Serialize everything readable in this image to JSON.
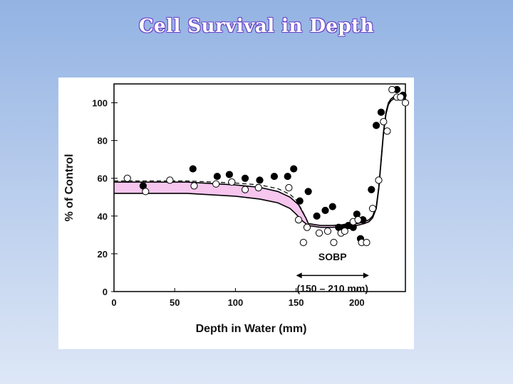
{
  "slide": {
    "title": "Cell Survival in Depth"
  },
  "chart_data": {
    "type": "scatter",
    "title": "",
    "xlabel": "Depth in Water (mm)",
    "ylabel": "% of Control",
    "xlim": [
      0,
      240
    ],
    "ylim": [
      0,
      110
    ],
    "xticks": [
      0,
      50,
      100,
      150,
      200
    ],
    "yticks": [
      0,
      20,
      40,
      60,
      80,
      100
    ],
    "grid": false,
    "legend": "none",
    "colors": {
      "filled": "#000000",
      "open": "#ffffff",
      "band": "#f6c6ee",
      "line": "#000000"
    },
    "series": [
      {
        "marker": "filled-circle",
        "x": [
          24,
          65,
          85,
          95,
          108,
          120,
          132,
          143,
          148,
          153,
          160,
          167,
          174,
          180,
          185,
          190,
          193,
          197,
          200,
          203,
          205,
          212,
          216,
          220,
          233,
          238
        ],
        "y": [
          56,
          65,
          61,
          62,
          60,
          59,
          61,
          61,
          65,
          48,
          53,
          40,
          43,
          45,
          34,
          34,
          35,
          34,
          41,
          28,
          38,
          54,
          88,
          95,
          107,
          104
        ]
      },
      {
        "marker": "open-circle",
        "x": [
          11,
          26,
          46,
          66,
          84,
          97,
          108,
          119,
          144,
          152,
          156,
          159,
          169,
          176,
          181,
          187,
          190,
          197,
          201,
          204,
          208,
          213,
          218,
          222,
          225,
          229,
          233,
          236,
          240
        ],
        "y": [
          60,
          53,
          59,
          56,
          57,
          58,
          54,
          55,
          55,
          38,
          26,
          34,
          31,
          32,
          26,
          31,
          32,
          37,
          38,
          26,
          26,
          44,
          59,
          90,
          85,
          107,
          103,
          103,
          100
        ]
      }
    ],
    "curves": {
      "upper": {
        "x": [
          0,
          60,
          100,
          120,
          135,
          145,
          152,
          158,
          160,
          170,
          180,
          190,
          200,
          206,
          210,
          213,
          216,
          218,
          220,
          222,
          224,
          226,
          228,
          230,
          240
        ],
        "y": [
          58,
          58,
          56.5,
          55.2,
          53,
          50,
          46,
          39,
          36,
          35,
          35,
          35.5,
          36,
          37,
          38,
          40,
          45,
          55,
          70,
          85,
          95,
          100,
          102,
          103,
          103
        ]
      },
      "lower": {
        "x": [
          0,
          60,
          100,
          120,
          135,
          145,
          150,
          155,
          160,
          170,
          180,
          190,
          200,
          206,
          210,
          213,
          216,
          218,
          220,
          222,
          224,
          226,
          228,
          230,
          240
        ],
        "y": [
          52,
          52,
          50.5,
          49,
          47,
          44,
          41,
          37.5,
          35,
          34,
          34,
          34.5,
          35,
          36,
          37,
          39,
          44,
          54,
          69,
          84,
          94,
          99,
          101,
          102,
          102
        ]
      },
      "dashed": {
        "x": [
          0,
          60,
          100,
          120,
          135,
          145,
          150,
          155,
          158,
          160
        ],
        "y": [
          58.6,
          58.6,
          57.5,
          56.5,
          54.5,
          51.5,
          48.5,
          43,
          39,
          36.5
        ]
      }
    },
    "annotation": {
      "label": "SOBP",
      "range_label": "(150 – 210 mm)",
      "range": [
        150,
        210
      ]
    }
  }
}
